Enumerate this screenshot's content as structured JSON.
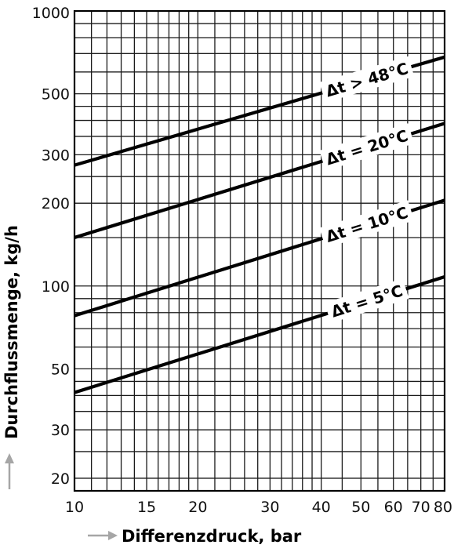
{
  "chart_data": {
    "type": "line",
    "title": "",
    "xlabel": "Differenzdruck, bar",
    "ylabel": "Durchflussmenge, kg/h",
    "xscale": "log",
    "yscale": "log",
    "xlim": [
      10,
      80
    ],
    "ylim": [
      18,
      1000
    ],
    "grid": true,
    "legend": "none",
    "x_ticks": [
      {
        "value": 10,
        "label": "10"
      },
      {
        "value": 15,
        "label": "15"
      },
      {
        "value": 20,
        "label": "20"
      },
      {
        "value": 30,
        "label": "30"
      },
      {
        "value": 40,
        "label": "40"
      },
      {
        "value": 50,
        "label": "50"
      },
      {
        "value": 60,
        "label": "60"
      },
      {
        "value": 70,
        "label": "70"
      },
      {
        "value": 80,
        "label": "80"
      }
    ],
    "y_ticks": [
      {
        "value": 20,
        "label": "20"
      },
      {
        "value": 30,
        "label": "30"
      },
      {
        "value": 50,
        "label": "50"
      },
      {
        "value": 100,
        "label": "100"
      },
      {
        "value": 200,
        "label": "200"
      },
      {
        "value": 300,
        "label": "300"
      },
      {
        "value": 500,
        "label": "500"
      },
      {
        "value": 1000,
        "label": "1000"
      }
    ],
    "x_grid": [
      11,
      12,
      13,
      14,
      15,
      16,
      17,
      18,
      19,
      20,
      22,
      24,
      26,
      28,
      30,
      32,
      34,
      36,
      38,
      40,
      45,
      50,
      55,
      60,
      65,
      70,
      75
    ],
    "y_grid": [
      20,
      25,
      30,
      35,
      40,
      45,
      50,
      60,
      70,
      80,
      90,
      100,
      150,
      200,
      250,
      300,
      350,
      400,
      450,
      500,
      600,
      700,
      800,
      900
    ],
    "series": [
      {
        "name": "Δt > 48°C",
        "x": [
          10,
          80
        ],
        "y": [
          275,
          680
        ]
      },
      {
        "name": "Δt = 20°C",
        "x": [
          10,
          80
        ],
        "y": [
          150,
          390
        ]
      },
      {
        "name": "Δt = 10°C",
        "x": [
          10,
          80
        ],
        "y": [
          78,
          205
        ]
      },
      {
        "name": "Δt = 5°C",
        "x": [
          10,
          80
        ],
        "y": [
          41,
          108
        ]
      }
    ]
  },
  "colors": {
    "line": "#000000",
    "grid": "#1a1a1a",
    "arrow": "#a6a6a6"
  }
}
